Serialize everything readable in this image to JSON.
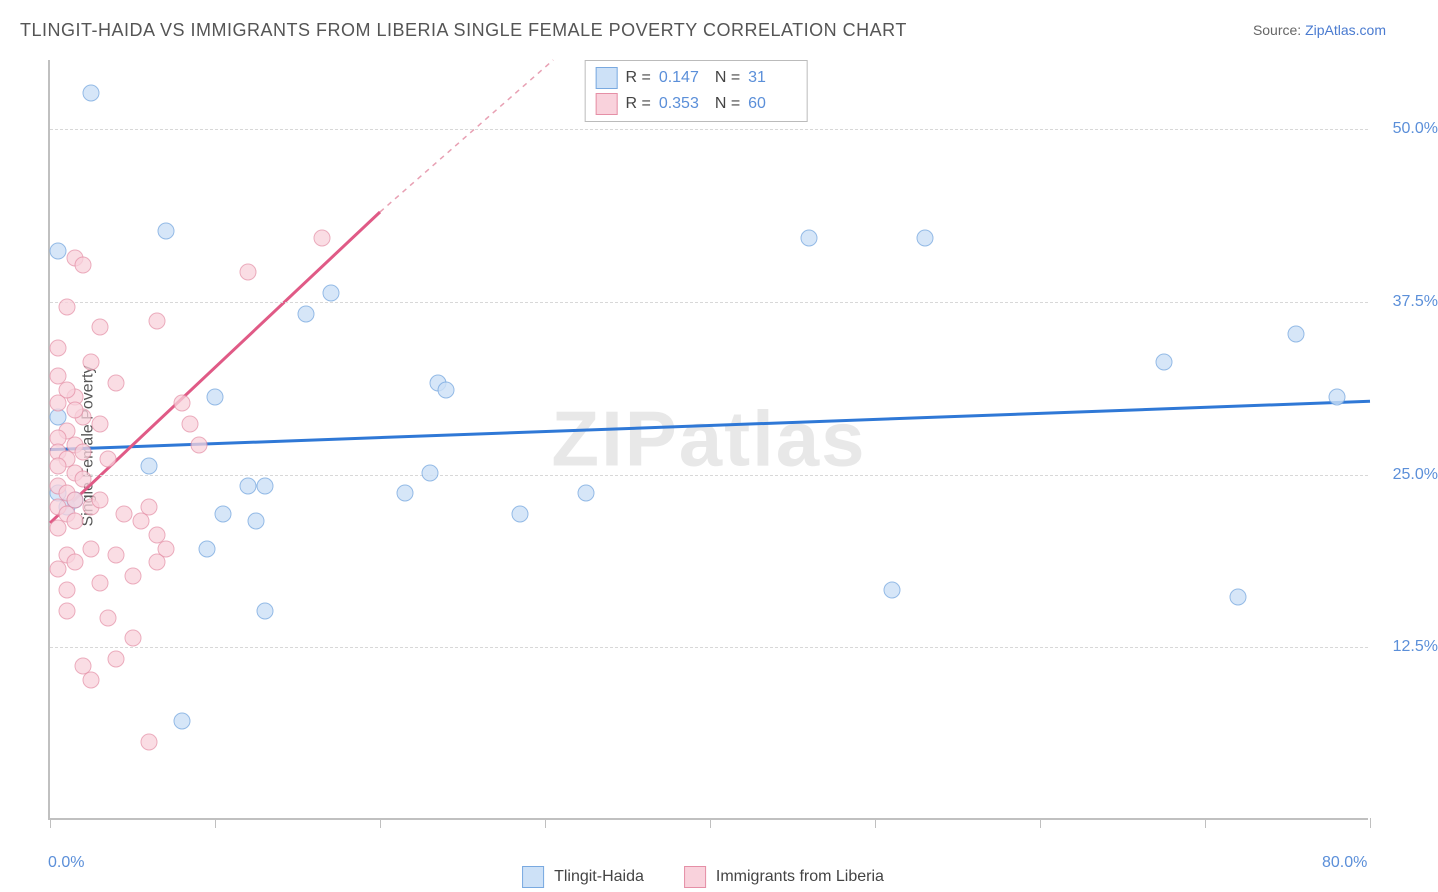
{
  "title": "TLINGIT-HAIDA VS IMMIGRANTS FROM LIBERIA SINGLE FEMALE POVERTY CORRELATION CHART",
  "source_prefix": "Source: ",
  "source_link": "ZipAtlas.com",
  "y_axis_label": "Single Female Poverty",
  "watermark": "ZIPatlas",
  "chart": {
    "type": "scatter",
    "xlim": [
      0,
      80
    ],
    "ylim": [
      0,
      55
    ],
    "x_ticks": [
      0,
      10,
      20,
      30,
      40,
      50,
      60,
      70,
      80
    ],
    "x_tick_labels": {
      "0": "0.0%",
      "80": "80.0%"
    },
    "y_ticks": [
      12.5,
      25.0,
      37.5,
      50.0
    ],
    "y_tick_labels": [
      "12.5%",
      "25.0%",
      "37.5%",
      "50.0%"
    ],
    "grid_color": "#d8d8d8",
    "axis_color": "#c0c0c0",
    "background": "#ffffff",
    "watermark_color": "#e8e8e8",
    "legend": {
      "series1_label": "Tlingit-Haida",
      "series2_label": "Immigrants from Liberia"
    },
    "stat_legend": {
      "r_label": "R  =",
      "n_label": "N  =",
      "rows": [
        {
          "swatch_fill": "#cde1f7",
          "swatch_border": "#79a9e0",
          "r": "0.147",
          "n": "31"
        },
        {
          "swatch_fill": "#f9d2dc",
          "swatch_border": "#e58fa6",
          "r": "0.353",
          "n": "60"
        }
      ]
    },
    "series": [
      {
        "name": "Tlingit-Haida",
        "marker_fill": "#cde1f7",
        "marker_border": "#79a9e0",
        "marker_opacity": 0.8,
        "marker_size": 17,
        "trend": {
          "x1": 0,
          "y1": 26.8,
          "x2": 80,
          "y2": 30.3,
          "stroke": "#2f78d6",
          "width": 3,
          "dash": "none"
        },
        "points": [
          [
            2.5,
            52.5
          ],
          [
            7,
            42.5
          ],
          [
            0.5,
            41
          ],
          [
            17,
            38
          ],
          [
            15.5,
            36.5
          ],
          [
            46,
            42
          ],
          [
            53,
            42
          ],
          [
            0.5,
            29
          ],
          [
            10,
            30.5
          ],
          [
            23.5,
            31.5
          ],
          [
            6,
            25.5
          ],
          [
            12,
            24
          ],
          [
            13,
            24
          ],
          [
            0.5,
            23.5
          ],
          [
            1,
            22.5
          ],
          [
            10.5,
            22
          ],
          [
            12.5,
            21.5
          ],
          [
            21.5,
            23.5
          ],
          [
            9.5,
            19.5
          ],
          [
            13,
            15
          ],
          [
            8,
            7
          ],
          [
            23,
            25
          ],
          [
            32.5,
            23.5
          ],
          [
            28.5,
            22
          ],
          [
            67.5,
            33
          ],
          [
            75.5,
            35
          ],
          [
            78,
            30.5
          ],
          [
            72,
            16
          ],
          [
            51,
            16.5
          ],
          [
            24,
            31
          ],
          [
            1.5,
            23
          ]
        ]
      },
      {
        "name": "Immigrants from Liberia",
        "marker_fill": "#f9d2dc",
        "marker_border": "#e58fa6",
        "marker_opacity": 0.75,
        "marker_size": 17,
        "trend": {
          "x1": 0,
          "y1": 21.5,
          "x2": 20,
          "y2": 44,
          "stroke": "#e05a86",
          "width": 3,
          "dash": "none"
        },
        "trend_ext": {
          "x1": 20,
          "y1": 44,
          "x2": 30.5,
          "y2": 55,
          "stroke": "#e8a0b3",
          "width": 1.5,
          "dash": "5,5"
        },
        "points": [
          [
            1.5,
            40.5
          ],
          [
            2,
            40
          ],
          [
            16.5,
            42
          ],
          [
            12,
            39.5
          ],
          [
            1,
            37
          ],
          [
            6.5,
            36
          ],
          [
            3,
            35.5
          ],
          [
            0.5,
            34
          ],
          [
            1.5,
            30.5
          ],
          [
            8,
            30
          ],
          [
            8.5,
            28.5
          ],
          [
            1,
            28
          ],
          [
            0.5,
            27.5
          ],
          [
            1.5,
            27
          ],
          [
            0.5,
            26.5
          ],
          [
            1,
            26
          ],
          [
            0.5,
            25.5
          ],
          [
            1.5,
            25
          ],
          [
            2,
            24.5
          ],
          [
            0.5,
            24
          ],
          [
            1,
            23.5
          ],
          [
            1.5,
            23
          ],
          [
            0.5,
            22.5
          ],
          [
            2.5,
            22.5
          ],
          [
            3,
            23
          ],
          [
            1,
            22
          ],
          [
            1.5,
            21.5
          ],
          [
            0.5,
            21
          ],
          [
            4.5,
            22
          ],
          [
            5.5,
            21.5
          ],
          [
            6,
            22.5
          ],
          [
            7,
            19.5
          ],
          [
            6.5,
            18.5
          ],
          [
            4,
            19
          ],
          [
            2.5,
            19.5
          ],
          [
            1,
            19
          ],
          [
            1.5,
            18.5
          ],
          [
            0.5,
            18
          ],
          [
            5,
            17.5
          ],
          [
            3,
            17
          ],
          [
            1,
            16.5
          ],
          [
            3.5,
            14.5
          ],
          [
            2,
            11
          ],
          [
            2.5,
            10
          ],
          [
            6,
            5.5
          ],
          [
            4,
            11.5
          ],
          [
            5,
            13
          ],
          [
            1,
            15
          ],
          [
            6.5,
            20.5
          ],
          [
            3.5,
            26
          ],
          [
            2,
            29
          ],
          [
            1,
            31
          ],
          [
            2.5,
            33
          ],
          [
            4,
            31.5
          ],
          [
            0.5,
            32
          ],
          [
            9,
            27
          ],
          [
            3,
            28.5
          ],
          [
            2,
            26.5
          ],
          [
            1.5,
            29.5
          ],
          [
            0.5,
            30
          ]
        ]
      }
    ]
  }
}
